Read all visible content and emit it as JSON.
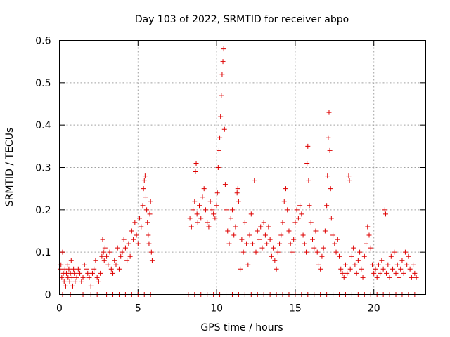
{
  "chart_data": {
    "type": "scatter",
    "title": "Day 103 of 2022, SRMTID for receiver abpo",
    "xlabel": "GPS time / hours",
    "ylabel": "SRMTID / TECUs",
    "xlim": [
      0,
      23.3
    ],
    "ylim": [
      0,
      0.6
    ],
    "xticks": [
      0,
      5,
      10,
      15,
      20
    ],
    "xtick_labels": [
      "0",
      "5",
      "10",
      "15",
      "20"
    ],
    "yticks": [
      0,
      0.1,
      0.2,
      0.3,
      0.4,
      0.5,
      0.6
    ],
    "ytick_labels": [
      "0",
      "0.1",
      "0.2",
      "0.3",
      "0.4",
      "0.5",
      "0.6"
    ],
    "grid": true,
    "marker": "plus",
    "color": "#dd0000",
    "series": [
      {
        "name": "SRMTID",
        "points": [
          [
            0.05,
            0.06
          ],
          [
            0.1,
            0.07
          ],
          [
            0.15,
            0.04
          ],
          [
            0.2,
            0.1
          ],
          [
            0.25,
            0.05
          ],
          [
            0.3,
            0.03
          ],
          [
            0.35,
            0.06
          ],
          [
            0.4,
            0.02
          ],
          [
            0.45,
            0.05
          ],
          [
            0.5,
            0.07
          ],
          [
            0.55,
            0.04
          ],
          [
            0.6,
            0.06
          ],
          [
            0.65,
            0.03
          ],
          [
            0.7,
            0.05
          ],
          [
            0.75,
            0.08
          ],
          [
            0.8,
            0.04
          ],
          [
            0.85,
            0.02
          ],
          [
            0.9,
            0.06
          ],
          [
            0.95,
            0.05
          ],
          [
            1.0,
            0.03
          ],
          [
            1.1,
            0.04
          ],
          [
            1.2,
            0.06
          ],
          [
            1.3,
            0.05
          ],
          [
            1.4,
            0.03
          ],
          [
            1.5,
            0.04
          ],
          [
            1.6,
            0.07
          ],
          [
            1.7,
            0.06
          ],
          [
            1.8,
            0.05
          ],
          [
            1.9,
            0.04
          ],
          [
            2.0,
            0.02
          ],
          [
            2.1,
            0.05
          ],
          [
            2.2,
            0.06
          ],
          [
            2.3,
            0.08
          ],
          [
            2.4,
            0.04
          ],
          [
            2.5,
            0.03
          ],
          [
            2.6,
            0.05
          ],
          [
            2.7,
            0.09
          ],
          [
            2.75,
            0.13
          ],
          [
            2.8,
            0.1
          ],
          [
            2.85,
            0.08
          ],
          [
            2.9,
            0.11
          ],
          [
            3.0,
            0.09
          ],
          [
            3.1,
            0.07
          ],
          [
            3.2,
            0.1
          ],
          [
            3.3,
            0.06
          ],
          [
            3.4,
            0.05
          ],
          [
            3.5,
            0.08
          ],
          [
            3.6,
            0.07
          ],
          [
            3.7,
            0.11
          ],
          [
            3.8,
            0.06
          ],
          [
            3.9,
            0.09
          ],
          [
            4.0,
            0.1
          ],
          [
            4.1,
            0.13
          ],
          [
            4.2,
            0.11
          ],
          [
            4.3,
            0.08
          ],
          [
            4.4,
            0.12
          ],
          [
            4.5,
            0.09
          ],
          [
            4.6,
            0.15
          ],
          [
            4.7,
            0.13
          ],
          [
            4.8,
            0.17
          ],
          [
            4.9,
            0.14
          ],
          [
            5.0,
            0.12
          ],
          [
            5.1,
            0.18
          ],
          [
            5.2,
            0.16
          ],
          [
            5.3,
            0.21
          ],
          [
            5.35,
            0.25
          ],
          [
            5.4,
            0.27
          ],
          [
            5.45,
            0.28
          ],
          [
            5.5,
            0.23
          ],
          [
            5.55,
            0.2
          ],
          [
            5.6,
            0.17
          ],
          [
            5.65,
            0.14
          ],
          [
            5.7,
            0.12
          ],
          [
            5.75,
            0.19
          ],
          [
            5.8,
            0.22
          ],
          [
            5.85,
            0.1
          ],
          [
            5.9,
            0.08
          ],
          [
            8.3,
            0.18
          ],
          [
            8.4,
            0.16
          ],
          [
            8.5,
            0.2
          ],
          [
            8.6,
            0.22
          ],
          [
            8.65,
            0.29
          ],
          [
            8.7,
            0.31
          ],
          [
            8.75,
            0.19
          ],
          [
            8.8,
            0.17
          ],
          [
            8.9,
            0.21
          ],
          [
            9.0,
            0.18
          ],
          [
            9.1,
            0.23
          ],
          [
            9.2,
            0.25
          ],
          [
            9.3,
            0.2
          ],
          [
            9.4,
            0.17
          ],
          [
            9.5,
            0.16
          ],
          [
            9.6,
            0.22
          ],
          [
            9.7,
            0.2
          ],
          [
            9.8,
            0.19
          ],
          [
            9.9,
            0.18
          ],
          [
            10.0,
            0.21
          ],
          [
            10.05,
            0.24
          ],
          [
            10.1,
            0.3
          ],
          [
            10.15,
            0.34
          ],
          [
            10.2,
            0.37
          ],
          [
            10.25,
            0.42
          ],
          [
            10.3,
            0.47
          ],
          [
            10.35,
            0.52
          ],
          [
            10.4,
            0.55
          ],
          [
            10.45,
            0.58
          ],
          [
            10.5,
            0.39
          ],
          [
            10.55,
            0.26
          ],
          [
            10.6,
            0.2
          ],
          [
            10.7,
            0.15
          ],
          [
            10.8,
            0.12
          ],
          [
            10.9,
            0.18
          ],
          [
            11.0,
            0.2
          ],
          [
            11.1,
            0.14
          ],
          [
            11.2,
            0.16
          ],
          [
            11.3,
            0.24
          ],
          [
            11.35,
            0.25
          ],
          [
            11.4,
            0.22
          ],
          [
            11.5,
            0.06
          ],
          [
            11.6,
            0.13
          ],
          [
            11.7,
            0.1
          ],
          [
            11.8,
            0.17
          ],
          [
            11.9,
            0.12
          ],
          [
            12.0,
            0.07
          ],
          [
            12.1,
            0.14
          ],
          [
            12.2,
            0.19
          ],
          [
            12.3,
            0.12
          ],
          [
            12.4,
            0.27
          ],
          [
            12.5,
            0.1
          ],
          [
            12.6,
            0.15
          ],
          [
            12.7,
            0.13
          ],
          [
            12.8,
            0.16
          ],
          [
            12.9,
            0.11
          ],
          [
            13.0,
            0.17
          ],
          [
            13.1,
            0.14
          ],
          [
            13.2,
            0.12
          ],
          [
            13.3,
            0.16
          ],
          [
            13.4,
            0.13
          ],
          [
            13.5,
            0.09
          ],
          [
            13.6,
            0.11
          ],
          [
            13.7,
            0.08
          ],
          [
            13.8,
            0.06
          ],
          [
            13.9,
            0.1
          ],
          [
            14.0,
            0.12
          ],
          [
            14.1,
            0.14
          ],
          [
            14.2,
            0.17
          ],
          [
            14.3,
            0.22
          ],
          [
            14.4,
            0.25
          ],
          [
            14.5,
            0.2
          ],
          [
            14.6,
            0.15
          ],
          [
            14.7,
            0.12
          ],
          [
            14.8,
            0.1
          ],
          [
            14.9,
            0.13
          ],
          [
            15.0,
            0.17
          ],
          [
            15.1,
            0.2
          ],
          [
            15.2,
            0.18
          ],
          [
            15.3,
            0.21
          ],
          [
            15.4,
            0.19
          ],
          [
            15.5,
            0.14
          ],
          [
            15.6,
            0.12
          ],
          [
            15.7,
            0.1
          ],
          [
            15.75,
            0.31
          ],
          [
            15.8,
            0.35
          ],
          [
            15.85,
            0.27
          ],
          [
            15.9,
            0.21
          ],
          [
            16.0,
            0.17
          ],
          [
            16.1,
            0.13
          ],
          [
            16.2,
            0.11
          ],
          [
            16.3,
            0.15
          ],
          [
            16.4,
            0.1
          ],
          [
            16.5,
            0.07
          ],
          [
            16.6,
            0.06
          ],
          [
            16.7,
            0.09
          ],
          [
            16.8,
            0.11
          ],
          [
            16.9,
            0.15
          ],
          [
            17.0,
            0.21
          ],
          [
            17.05,
            0.28
          ],
          [
            17.1,
            0.37
          ],
          [
            17.15,
            0.43
          ],
          [
            17.2,
            0.34
          ],
          [
            17.25,
            0.25
          ],
          [
            17.3,
            0.18
          ],
          [
            17.4,
            0.14
          ],
          [
            17.5,
            0.12
          ],
          [
            17.6,
            0.1
          ],
          [
            17.7,
            0.13
          ],
          [
            17.8,
            0.09
          ],
          [
            17.9,
            0.06
          ],
          [
            18.0,
            0.05
          ],
          [
            18.1,
            0.04
          ],
          [
            18.2,
            0.07
          ],
          [
            18.3,
            0.05
          ],
          [
            18.4,
            0.28
          ],
          [
            18.45,
            0.27
          ],
          [
            18.5,
            0.06
          ],
          [
            18.6,
            0.09
          ],
          [
            18.7,
            0.11
          ],
          [
            18.8,
            0.07
          ],
          [
            18.9,
            0.05
          ],
          [
            19.0,
            0.08
          ],
          [
            19.1,
            0.1
          ],
          [
            19.2,
            0.06
          ],
          [
            19.3,
            0.04
          ],
          [
            19.4,
            0.09
          ],
          [
            19.5,
            0.12
          ],
          [
            19.6,
            0.16
          ],
          [
            19.7,
            0.14
          ],
          [
            19.8,
            0.11
          ],
          [
            19.9,
            0.07
          ],
          [
            20.0,
            0.05
          ],
          [
            20.1,
            0.06
          ],
          [
            20.2,
            0.04
          ],
          [
            20.3,
            0.07
          ],
          [
            20.4,
            0.05
          ],
          [
            20.5,
            0.08
          ],
          [
            20.6,
            0.06
          ],
          [
            20.7,
            0.2
          ],
          [
            20.75,
            0.19
          ],
          [
            20.8,
            0.05
          ],
          [
            20.9,
            0.07
          ],
          [
            21.0,
            0.04
          ],
          [
            21.1,
            0.09
          ],
          [
            21.2,
            0.06
          ],
          [
            21.3,
            0.1
          ],
          [
            21.4,
            0.05
          ],
          [
            21.5,
            0.07
          ],
          [
            21.6,
            0.04
          ],
          [
            21.7,
            0.06
          ],
          [
            21.8,
            0.08
          ],
          [
            21.9,
            0.05
          ],
          [
            22.0,
            0.1
          ],
          [
            22.1,
            0.07
          ],
          [
            22.2,
            0.09
          ],
          [
            22.3,
            0.06
          ],
          [
            22.4,
            0.04
          ],
          [
            22.5,
            0.07
          ],
          [
            22.6,
            0.05
          ],
          [
            22.7,
            0.04
          ],
          [
            0.2,
            0
          ],
          [
            0.7,
            0
          ],
          [
            1.5,
            0
          ],
          [
            2.0,
            0
          ],
          [
            2.4,
            0
          ],
          [
            3.0,
            0
          ],
          [
            3.4,
            0
          ],
          [
            3.8,
            0
          ],
          [
            4.2,
            0
          ],
          [
            4.6,
            0
          ],
          [
            5.0,
            0
          ],
          [
            5.4,
            0
          ],
          [
            5.8,
            0
          ],
          [
            8.2,
            0
          ],
          [
            8.6,
            0
          ],
          [
            9.0,
            0
          ],
          [
            9.4,
            0
          ],
          [
            9.8,
            0
          ],
          [
            10.2,
            0
          ],
          [
            10.6,
            0
          ],
          [
            11.0,
            0
          ],
          [
            11.4,
            0
          ],
          [
            11.8,
            0
          ],
          [
            12.2,
            0
          ],
          [
            12.6,
            0
          ],
          [
            13.0,
            0
          ],
          [
            13.4,
            0
          ],
          [
            13.8,
            0
          ],
          [
            14.2,
            0
          ],
          [
            14.6,
            0
          ],
          [
            15.0,
            0
          ],
          [
            15.4,
            0
          ],
          [
            15.8,
            0
          ],
          [
            16.2,
            0
          ],
          [
            16.6,
            0
          ],
          [
            17.0,
            0
          ],
          [
            17.4,
            0
          ],
          [
            17.8,
            0
          ],
          [
            18.2,
            0
          ],
          [
            18.6,
            0
          ],
          [
            19.0,
            0
          ],
          [
            19.4,
            0
          ],
          [
            19.8,
            0
          ],
          [
            20.2,
            0
          ],
          [
            20.6,
            0
          ],
          [
            21.0,
            0
          ],
          [
            21.4,
            0
          ],
          [
            21.8,
            0
          ],
          [
            22.2,
            0
          ],
          [
            22.6,
            0
          ]
        ]
      }
    ]
  }
}
